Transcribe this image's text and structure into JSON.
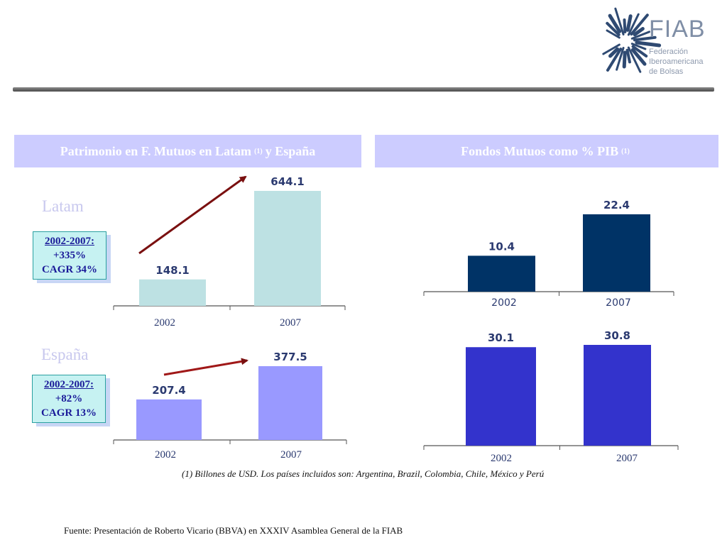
{
  "logo": {
    "name": "FIAB",
    "subtitle_lines": [
      "Federación",
      "Iberoamericana",
      "de Bolsas"
    ]
  },
  "left_panel": {
    "title": "Patrimonio en F. Mutuos en Latam",
    "title_note": "(1)",
    "title_suffix": "y España"
  },
  "right_panel": {
    "title": "Fondos Mutuos como % PIB",
    "title_note": "(1)"
  },
  "latam": {
    "label": "Latam",
    "growth": {
      "period": "2002-2007:",
      "increase": "+335%",
      "cagr": "CAGR 34%"
    }
  },
  "espana": {
    "label": "España",
    "growth": {
      "period": "2002-2007:",
      "increase": "+82%",
      "cagr": "CAGR 13%"
    }
  },
  "chart_data": [
    {
      "type": "bar",
      "id": "latam-patrimonio",
      "categories": [
        "2002",
        "2007"
      ],
      "values": [
        148.1,
        644.1
      ],
      "value_labels": [
        "148.1",
        "644.1"
      ],
      "color": "#bde1e3",
      "ylim": [
        0,
        700
      ]
    },
    {
      "type": "bar",
      "id": "espana-patrimonio",
      "categories": [
        "2002",
        "2007"
      ],
      "values": [
        207.4,
        377.5
      ],
      "value_labels": [
        "207.4",
        "377.5"
      ],
      "color": "#9999ff",
      "ylim": [
        0,
        420
      ]
    },
    {
      "type": "bar",
      "id": "latam-pib",
      "categories": [
        "2002",
        "2007"
      ],
      "values": [
        10.4,
        22.4
      ],
      "value_labels": [
        "10.4",
        "22.4"
      ],
      "color": "#003366",
      "ylim": [
        0,
        24
      ]
    },
    {
      "type": "bar",
      "id": "espana-pib",
      "categories": [
        "2002",
        "2007"
      ],
      "values": [
        30.1,
        30.8
      ],
      "value_labels": [
        "30.1",
        "30.8"
      ],
      "color": "#3333cc",
      "ylim": [
        0,
        31
      ]
    }
  ],
  "footnote": "(1) Billones de USD. Los países incluidos son: Argentina, Brazil, Colombia, Chile, México y Perú",
  "source": "Fuente: Presentación de Roberto Vicario (BBVA) en XXXIV Asamblea General de la FIAB"
}
